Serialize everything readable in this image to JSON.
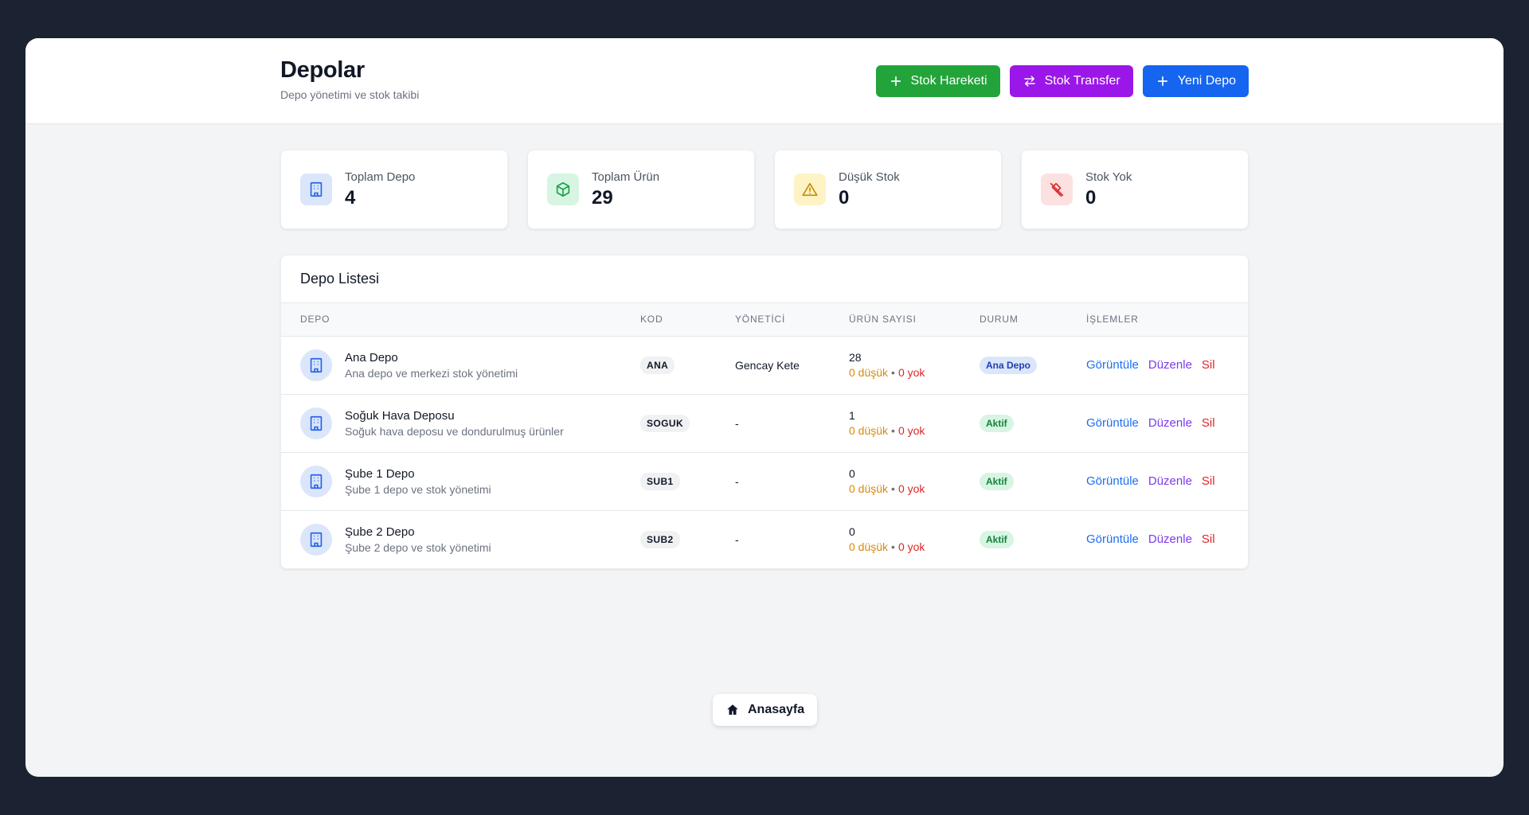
{
  "header": {
    "title": "Depolar",
    "subtitle": "Depo yönetimi ve stok takibi",
    "buttons": {
      "stock_movement": "Stok Hareketi",
      "stock_transfer": "Stok Transfer",
      "new_depot": "Yeni Depo"
    }
  },
  "stats": [
    {
      "label": "Toplam Depo",
      "value": "4",
      "icon": "building-icon",
      "color": "#2563eb"
    },
    {
      "label": "Toplam Ürün",
      "value": "29",
      "icon": "box-icon",
      "color": "#16a34a"
    },
    {
      "label": "Düşük Stok",
      "value": "0",
      "icon": "warning-icon",
      "color": "#ca8a04"
    },
    {
      "label": "Stok Yok",
      "value": "0",
      "icon": "no-stock-icon",
      "color": "#dc2626"
    }
  ],
  "list": {
    "title": "Depo Listesi",
    "columns": [
      "DEPO",
      "KOD",
      "YÖNETİCİ",
      "ÜRÜN SAYISI",
      "DURUM",
      "İŞLEMLER"
    ],
    "rows": [
      {
        "name": "Ana Depo",
        "desc": "Ana depo ve merkezi stok yönetimi",
        "code": "ANA",
        "manager": "Gencay Kete",
        "count": "28",
        "low": "0 düşük",
        "sep": "•",
        "none": "0 yok",
        "status": "Ana Depo"
      },
      {
        "name": "Soğuk Hava Deposu",
        "desc": "Soğuk hava deposu ve dondurulmuş ürünler",
        "code": "SOGUK",
        "manager": "-",
        "count": "1",
        "low": "0 düşük",
        "sep": "•",
        "none": "0 yok",
        "status": "Aktif"
      },
      {
        "name": "Şube 1 Depo",
        "desc": "Şube 1 depo ve stok yönetimi",
        "code": "SUB1",
        "manager": "-",
        "count": "0",
        "low": "0 düşük",
        "sep": "•",
        "none": "0 yok",
        "status": "Aktif"
      },
      {
        "name": "Şube 2 Depo",
        "desc": "Şube 2 depo ve stok yönetimi",
        "code": "SUB2",
        "manager": "-",
        "count": "0",
        "low": "0 düşük",
        "sep": "•",
        "none": "0 yok",
        "status": "Aktif"
      }
    ],
    "actions": {
      "view": "Görüntüle",
      "edit": "Düzenle",
      "delete": "Sil"
    }
  },
  "home": {
    "label": "Anasayfa"
  }
}
